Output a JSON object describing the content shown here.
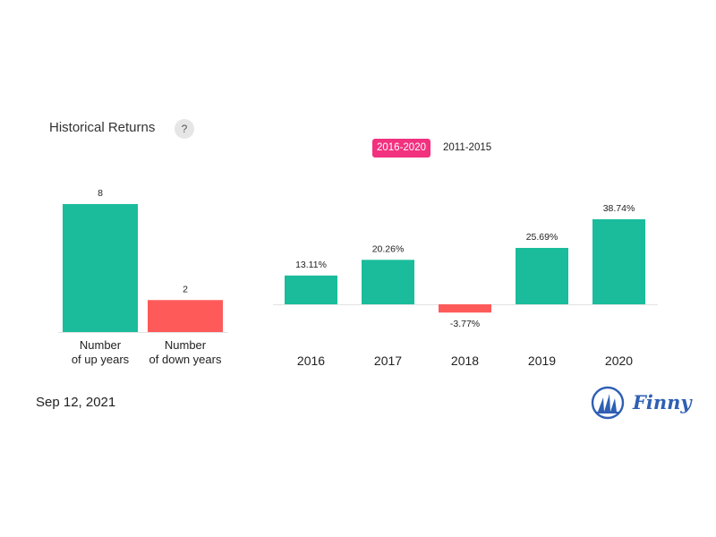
{
  "header": {
    "title": "Historical Returns",
    "help_label": "?"
  },
  "tabs": [
    {
      "label": "2016-2020",
      "active": true
    },
    {
      "label": "2011-2015",
      "active": false
    }
  ],
  "footer": {
    "date": "Sep 12, 2021",
    "brand": "Finny"
  },
  "colors": {
    "positive": "#1abc9c",
    "negative": "#ff5a5a",
    "accent": "#f2317f",
    "brand": "#2f5fb3"
  },
  "chart_data": [
    {
      "type": "bar",
      "categories": [
        "Number\nof up years",
        "Number\nof down years"
      ],
      "values": [
        8,
        2
      ],
      "value_labels": [
        "8",
        "2"
      ],
      "colors": [
        "#1abc9c",
        "#ff5a5a"
      ],
      "title": "",
      "xlabel": "",
      "ylabel": "",
      "ylim": [
        0,
        8
      ]
    },
    {
      "type": "bar",
      "categories": [
        "2016",
        "2017",
        "2018",
        "2019",
        "2020"
      ],
      "values": [
        13.11,
        20.26,
        -3.77,
        25.69,
        38.74
      ],
      "value_labels": [
        "13.11%",
        "20.26%",
        "-3.77%",
        "25.69%",
        "38.74%"
      ],
      "title": "",
      "xlabel": "",
      "ylabel": "",
      "ylim": [
        -3.77,
        38.74
      ]
    }
  ]
}
